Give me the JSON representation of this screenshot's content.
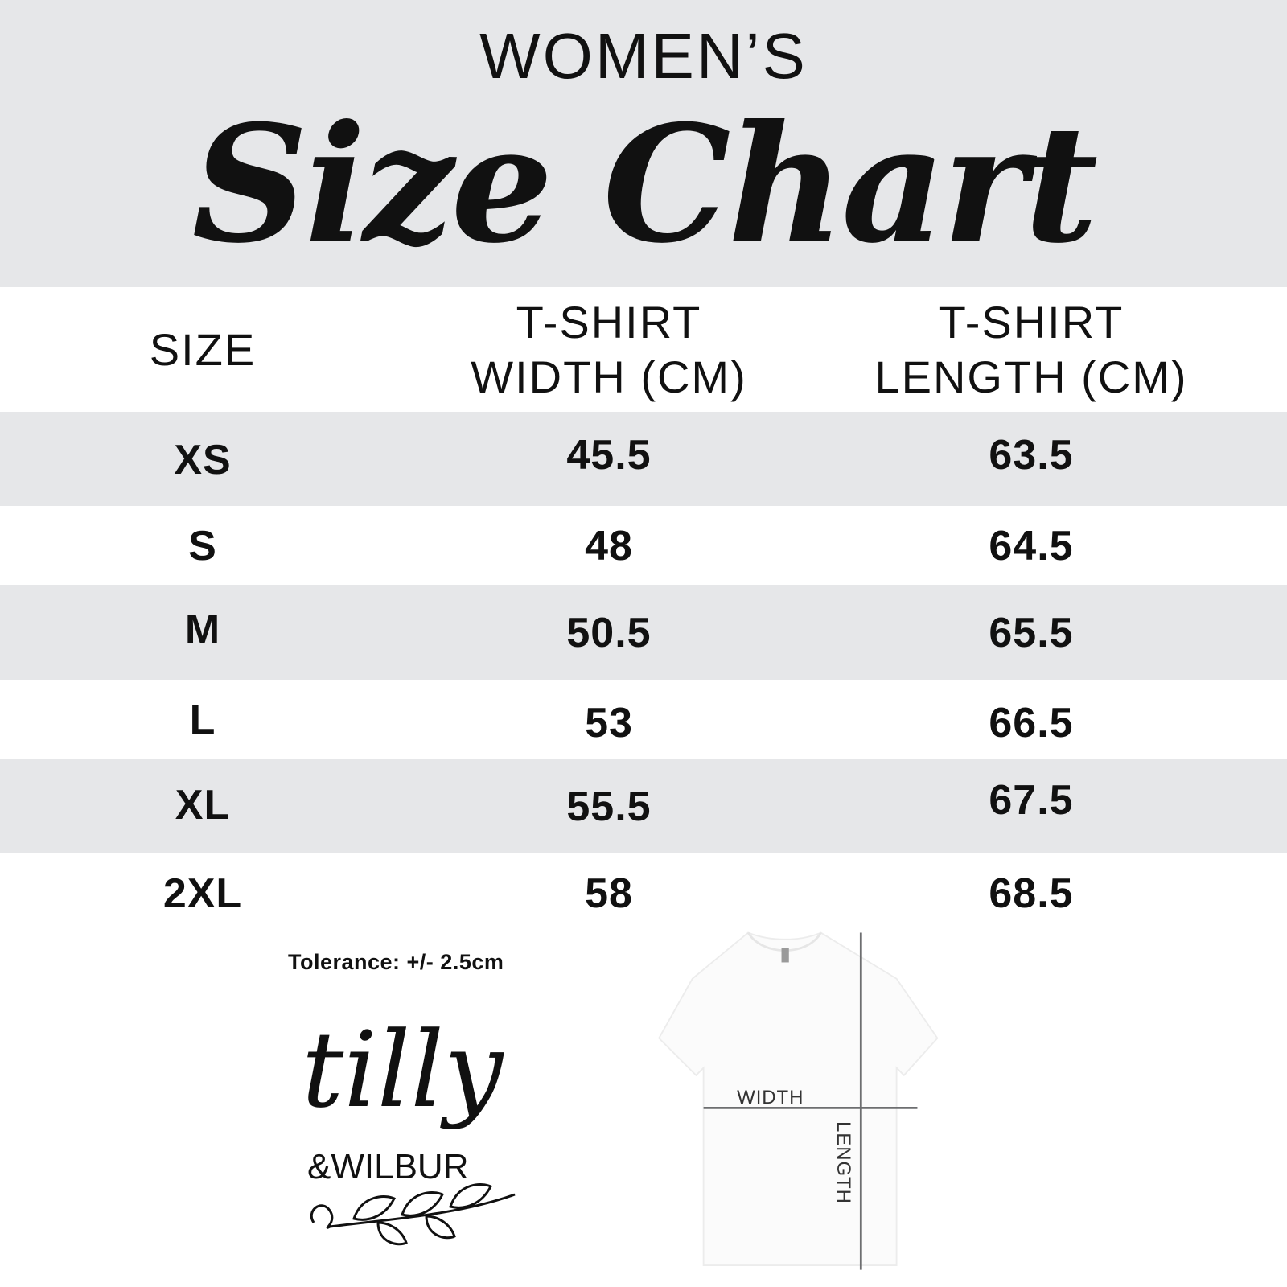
{
  "header": {
    "subtitle": "WOMEN’S",
    "title": "Size Chart"
  },
  "table": {
    "columns": [
      "SIZE",
      "T-SHIRT\nWIDTH (CM)",
      "T-SHIRT\nLENGTH (CM)"
    ],
    "col_lines": [
      [
        "SIZE"
      ],
      [
        "T-SHIRT",
        "WIDTH (CM)"
      ],
      [
        "T-SHIRT",
        "LENGTH (CM)"
      ]
    ],
    "rows": [
      {
        "size": "XS",
        "width": "45.5",
        "length": "63.5"
      },
      {
        "size": "S",
        "width": "48",
        "length": "64.5"
      },
      {
        "size": "M",
        "width": "50.5",
        "length": "65.5"
      },
      {
        "size": "L",
        "width": "53",
        "length": "66.5"
      },
      {
        "size": "XL",
        "width": "55.5",
        "length": "67.5"
      },
      {
        "size": "2XL",
        "width": "58",
        "length": "68.5"
      }
    ]
  },
  "tolerance": "Tolerance: +/- 2.5cm",
  "logo": {
    "text1": "tilly",
    "text2": "&WILBUR"
  },
  "diagram": {
    "width_label": "WIDTH",
    "length_label": "LENGTH"
  },
  "colors": {
    "band": "#e6e7e9",
    "text": "#111111",
    "guide": "#6d6e70"
  }
}
